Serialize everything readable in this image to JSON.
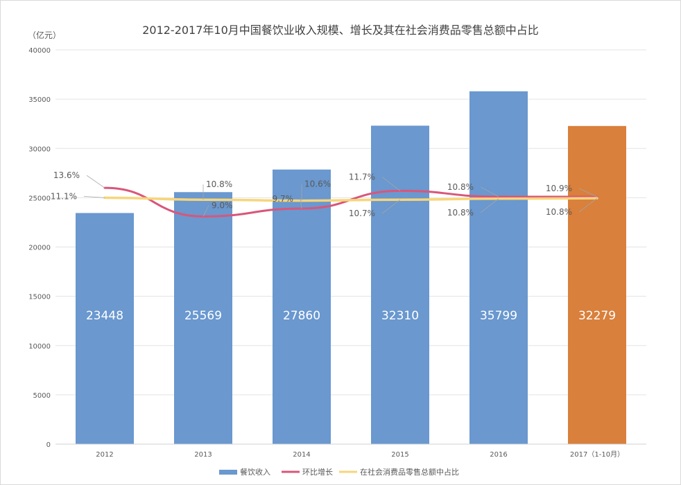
{
  "chart_data": {
    "type": "bar",
    "title": "2012-2017年10月中国餐饮业收入规模、增长及其在社会消费品零售总额中占比",
    "y_unit": "（亿元）",
    "categories": [
      "2012",
      "2013",
      "2014",
      "2015",
      "2016",
      "2017（1-10月）"
    ],
    "yticks": [
      "0",
      "5000",
      "10000",
      "15000",
      "20000",
      "25000",
      "30000",
      "35000",
      "40000"
    ],
    "ylim": [
      0,
      40000
    ],
    "grid": true,
    "legend_position": "bottom",
    "bars": {
      "name": "餐饮收入",
      "values": [
        23448,
        25569,
        27860,
        32310,
        35799,
        32279
      ],
      "labels": [
        "23448",
        "25569",
        "27860",
        "32310",
        "35799",
        "32279"
      ],
      "colors": [
        "#6a98cf",
        "#6a98cf",
        "#6a98cf",
        "#6a98cf",
        "#6a98cf",
        "#d9803c"
      ]
    },
    "series": [
      {
        "name": "环比增长",
        "type": "line",
        "color": "#d9567a",
        "values": [
          26000,
          23100,
          23900,
          25700,
          25100,
          25100
        ],
        "labels": [
          "13.6%",
          "9.0%",
          "9.7%",
          "11.7%",
          "10.8%",
          "10.9%"
        ]
      },
      {
        "name": "在社会消费品零售总额中占比",
        "type": "line",
        "color": "#f7d57a",
        "values": [
          25000,
          24800,
          24700,
          24800,
          24900,
          24950
        ],
        "labels": [
          "11.1%",
          "10.8%",
          "10.6%",
          "10.7%",
          "10.8%",
          "10.8%"
        ]
      }
    ]
  }
}
